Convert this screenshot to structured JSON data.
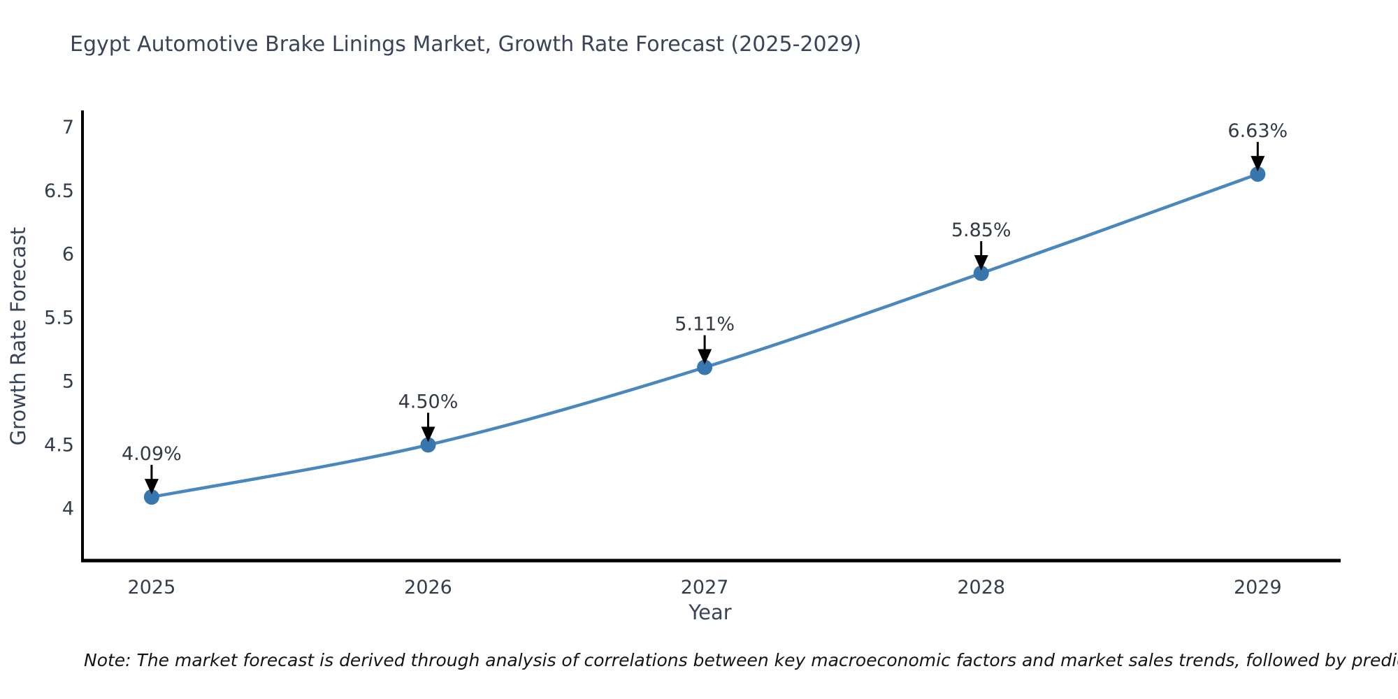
{
  "page": {
    "title": "Egypt Automotive Brake Linings Market, Growth Rate Forecast (2025-2029)",
    "note": "Note: The market forecast is derived through analysis of correlations between key macroeconomic factors and market sales trends, followed by predictive modeling to project future sales"
  },
  "chart_data": {
    "type": "line",
    "title": "Egypt Automotive Brake Linings Market, Growth Rate Forecast (2025-2029)",
    "xlabel": "Year",
    "ylabel": "Growth Rate Forecast",
    "x": [
      2025,
      2026,
      2027,
      2028,
      2029
    ],
    "series": [
      {
        "name": "Growth Rate Forecast",
        "values": [
          4.09,
          4.5,
          5.11,
          5.85,
          6.63
        ],
        "point_labels": [
          "4.09%",
          "4.50%",
          "5.11%",
          "5.85%",
          "6.63%"
        ]
      }
    ],
    "xticks": [
      "2025",
      "2026",
      "2027",
      "2028",
      "2029"
    ],
    "yticks": [
      4,
      4.5,
      5,
      5.5,
      6,
      6.5,
      7
    ],
    "ytick_labels": [
      "4",
      "4.5",
      "5",
      "5.5",
      "6",
      "6.5",
      "7"
    ],
    "xlim": [
      2024.75,
      2029.3
    ],
    "ylim": [
      3.59,
      7.12
    ],
    "grid": false,
    "legend": "none",
    "line_color": "#4a87bd",
    "marker_color": "#3876ae",
    "axis_color": "#000000",
    "tick_label_color": "#333e4c",
    "annotation_text_color": "#323a45",
    "annotation_arrow_color": "#000000"
  }
}
